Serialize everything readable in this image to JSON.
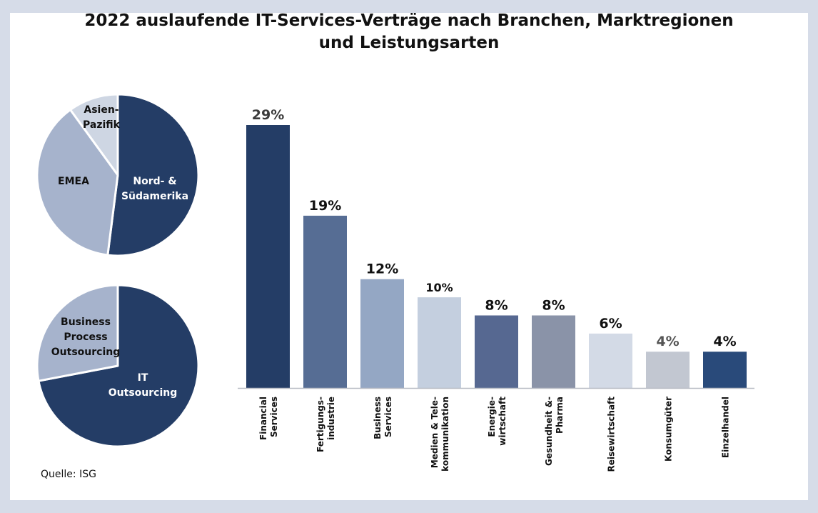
{
  "title_line1": "2022 auslaufende IT-Services-Verträge nach Branchen, Marktregionen",
  "title_line2": "und Leistungsarten",
  "source": "Quelle: ISG",
  "chart_data": [
    {
      "type": "bar",
      "title": "2022 auslaufende IT-Services-Verträge nach Branchen",
      "xlabel": "",
      "ylabel": "",
      "ylim": [
        0,
        30
      ],
      "grid": false,
      "categories": [
        [
          "Financial",
          "Services"
        ],
        [
          "Fertigungs-",
          "industrie"
        ],
        [
          "Business",
          "Services"
        ],
        [
          "Medien & Tele-",
          "kommunikation"
        ],
        [
          "Energie-",
          "wirtschaft"
        ],
        [
          "Gesundheit &-",
          "Pharma"
        ],
        [
          "Reisewirtschaft"
        ],
        [
          "Konsumgüter"
        ],
        [
          "Einzelhandel"
        ]
      ],
      "values": [
        29,
        19,
        12,
        10,
        8,
        8,
        6,
        4,
        4
      ],
      "data_labels": [
        "29%",
        "19%",
        "12%",
        "10%",
        "8%",
        "8%",
        "6%",
        "4%",
        "4%"
      ],
      "colors": [
        "#243d66",
        "#566d94",
        "#94a7c4",
        "#c4cfdf",
        "#566891",
        "#8a93a8",
        "#d3dae6",
        "#c2c7d1",
        "#294a7a"
      ],
      "label_colors": [
        "#3a3a3a",
        "#111111",
        "#111111",
        "#111111",
        "#111111",
        "#111111",
        "#111111",
        "#555555",
        "#111111"
      ]
    },
    {
      "type": "pie",
      "title": "Marktregionen",
      "slices": [
        {
          "label": [
            "Nord-  &",
            "Südamerika"
          ],
          "value": 52,
          "color": "#243d66",
          "text_color": "#ffffff"
        },
        {
          "label": [
            "EMEA"
          ],
          "value": 38,
          "color": "#a6b3cc",
          "text_color": "#111111"
        },
        {
          "label": [
            "Asien-",
            "Pazifik"
          ],
          "value": 10,
          "color": "#ced6e3",
          "text_color": "#111111"
        }
      ]
    },
    {
      "type": "pie",
      "title": "Leistungsarten",
      "slices": [
        {
          "label": [
            "IT",
            "Outsourcing"
          ],
          "value": 72,
          "color": "#243d66",
          "text_color": "#ffffff"
        },
        {
          "label": [
            "Business",
            "Process",
            "Outsourcing"
          ],
          "value": 28,
          "color": "#a6b3cc",
          "text_color": "#111111"
        }
      ]
    }
  ]
}
